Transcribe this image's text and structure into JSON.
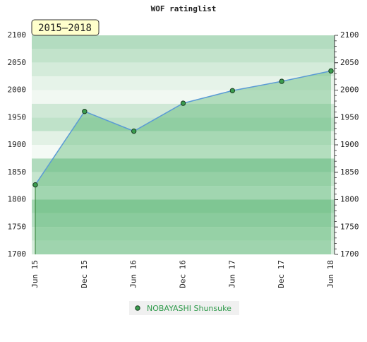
{
  "chart_data": {
    "type": "area-line",
    "title": "WOF ratinglist",
    "badge": "2015–2018",
    "categories": [
      "Jun 15",
      "Dec 15",
      "Jun 16",
      "Dec 16",
      "Jun 17",
      "Dec 17",
      "Jun 18"
    ],
    "series": [
      {
        "name": "NOBAYASHI Shunsuke",
        "color": "#5b9bd5",
        "values": [
          1827,
          1961,
          1925,
          1976,
          1999,
          2016,
          2035
        ]
      }
    ],
    "ylim": [
      1700,
      2100
    ],
    "yticks": [
      1700,
      1750,
      1800,
      1850,
      1900,
      1950,
      2000,
      2050,
      2100
    ],
    "grid": true
  }
}
